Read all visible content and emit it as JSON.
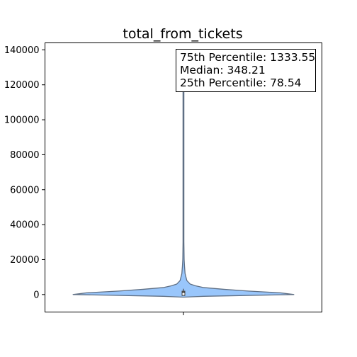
{
  "chart_data": {
    "type": "violin",
    "title": "total_from_tickets",
    "xlabel": "",
    "ylabel": "",
    "ylim": [
      -10000,
      144000
    ],
    "yticks": [
      0,
      20000,
      40000,
      60000,
      80000,
      100000,
      120000,
      140000
    ],
    "grid": false,
    "fill_color": "#99c6fb",
    "edge_color": "#5f6f84",
    "violin_max": 118000,
    "density_profile": [
      {
        "y": -1500,
        "half_width": 0.0
      },
      {
        "y": -1000,
        "half_width": 0.15
      },
      {
        "y": 0,
        "half_width": 0.82
      },
      {
        "y": 1000,
        "half_width": 0.72
      },
      {
        "y": 2000,
        "half_width": 0.48
      },
      {
        "y": 3000,
        "half_width": 0.3
      },
      {
        "y": 4000,
        "half_width": 0.15
      },
      {
        "y": 5000,
        "half_width": 0.09
      },
      {
        "y": 6000,
        "half_width": 0.05
      },
      {
        "y": 8000,
        "half_width": 0.025
      },
      {
        "y": 12000,
        "half_width": 0.012
      },
      {
        "y": 16000,
        "half_width": 0.008
      },
      {
        "y": 20000,
        "half_width": 0.005
      },
      {
        "y": 30000,
        "half_width": 0.003
      },
      {
        "y": 60000,
        "half_width": 0.002
      },
      {
        "y": 118000,
        "half_width": 0.001
      }
    ],
    "quartiles": {
      "q1": 78.54,
      "median": 348.21,
      "q3": 1333.55
    },
    "annotation_lines": [
      "75th Percentile: 1333.55",
      "Median: 348.21",
      "25th Percentile: 78.54"
    ]
  }
}
